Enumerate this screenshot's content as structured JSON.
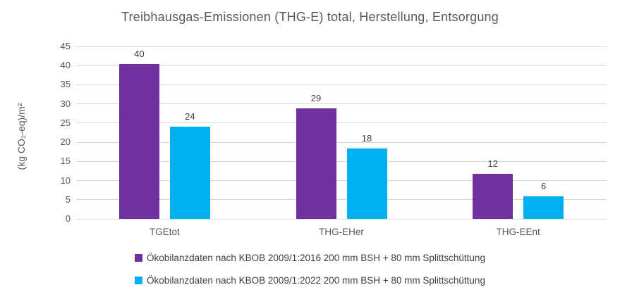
{
  "chart_data": {
    "type": "bar",
    "title": "Treibhausgas-Emissionen (THG-E) total, Herstellung, Entsorgung",
    "xlabel": "",
    "ylabel": "(kg CO₂-eq)/m²",
    "categories": [
      "TGEtot",
      "THG-EHer",
      "THG-EEnt"
    ],
    "series": [
      {
        "name": "Ökobilanzdaten nach KBOB 2009/1:2016 200 mm BSH + 80 mm Splittschüttung",
        "color": "#7030A0",
        "values": [
          40,
          29,
          12
        ],
        "values_precise": [
          40.5,
          28.9,
          11.7
        ],
        "data_labels": [
          "40",
          "29",
          "12"
        ]
      },
      {
        "name": "Ökobilanzdaten nach KBOB 2009/1:2022 200 mm BSH + 80 mm Splittschüttung",
        "color": "#00B0F0",
        "values": [
          24,
          18,
          6
        ],
        "values_precise": [
          24.1,
          18.3,
          5.9
        ],
        "data_labels": [
          "24",
          "18",
          "6"
        ]
      }
    ],
    "ylim": [
      0,
      45
    ],
    "yticks": [
      0,
      5,
      10,
      15,
      20,
      25,
      30,
      35,
      40,
      45
    ],
    "grid": "horizontal",
    "legend_position": "bottom",
    "colors": {
      "background": "#FFFFFF",
      "gridline": "#D9D9D9",
      "axis_text": "#595959",
      "data_label_text": "#404040",
      "title_text": "#595959"
    }
  }
}
